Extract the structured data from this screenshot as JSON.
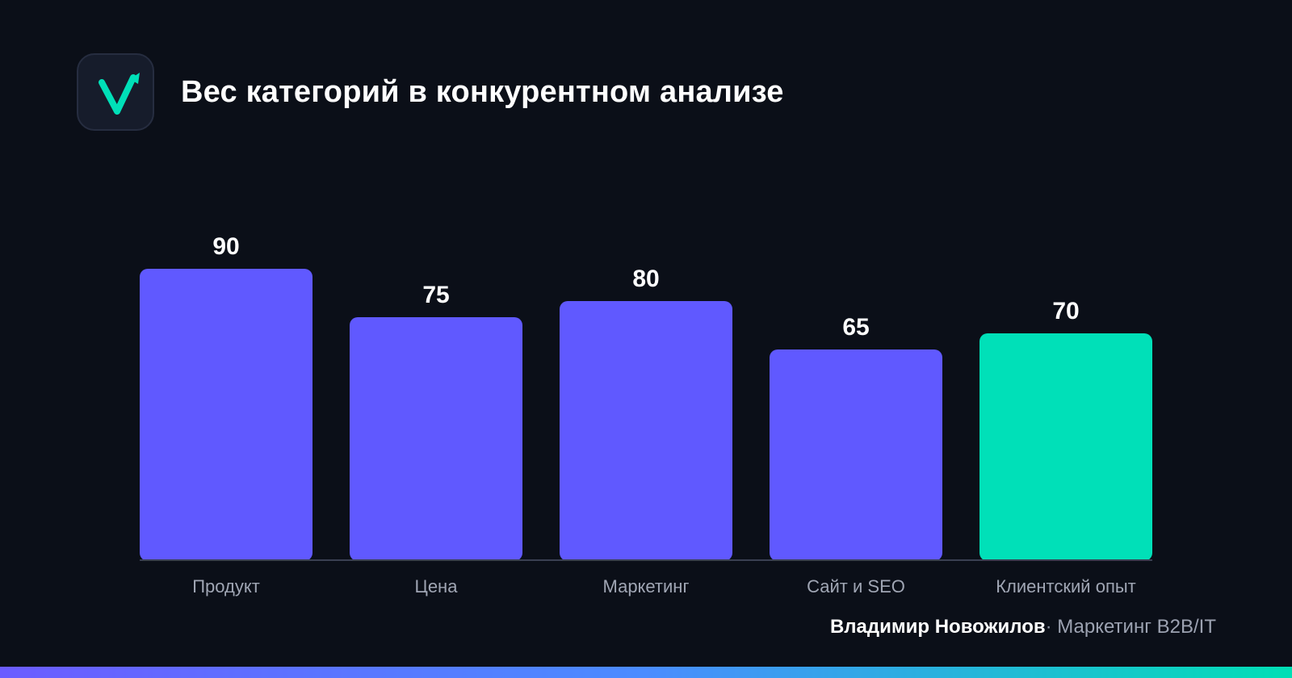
{
  "header": {
    "title": "Вес категорий в конкурентном анализе",
    "logo_icon": "checkmark-arrow-icon"
  },
  "chart_data": {
    "type": "bar",
    "title": "Вес категорий в конкурентном анализе",
    "xlabel": "",
    "ylabel": "",
    "categories": [
      "Продукт",
      "Цена",
      "Маркетинг",
      "Сайт и SEO",
      "Клиентский опыт"
    ],
    "values": [
      90,
      75,
      80,
      65,
      70
    ],
    "ylim": [
      0,
      90
    ],
    "grid": false,
    "legend": "none",
    "colors": {
      "default": "#6059ff",
      "highlight": "#00e0b8",
      "highlight_category": "Клиентский опыт"
    }
  },
  "footer": {
    "author": "Владимир Новожилов",
    "separator": "·",
    "role": "Маркетинг B2B/IT"
  },
  "theme": {
    "background": "#0b0f18",
    "accent_green": "#00e0b8",
    "accent_purple": "#6059ff"
  }
}
